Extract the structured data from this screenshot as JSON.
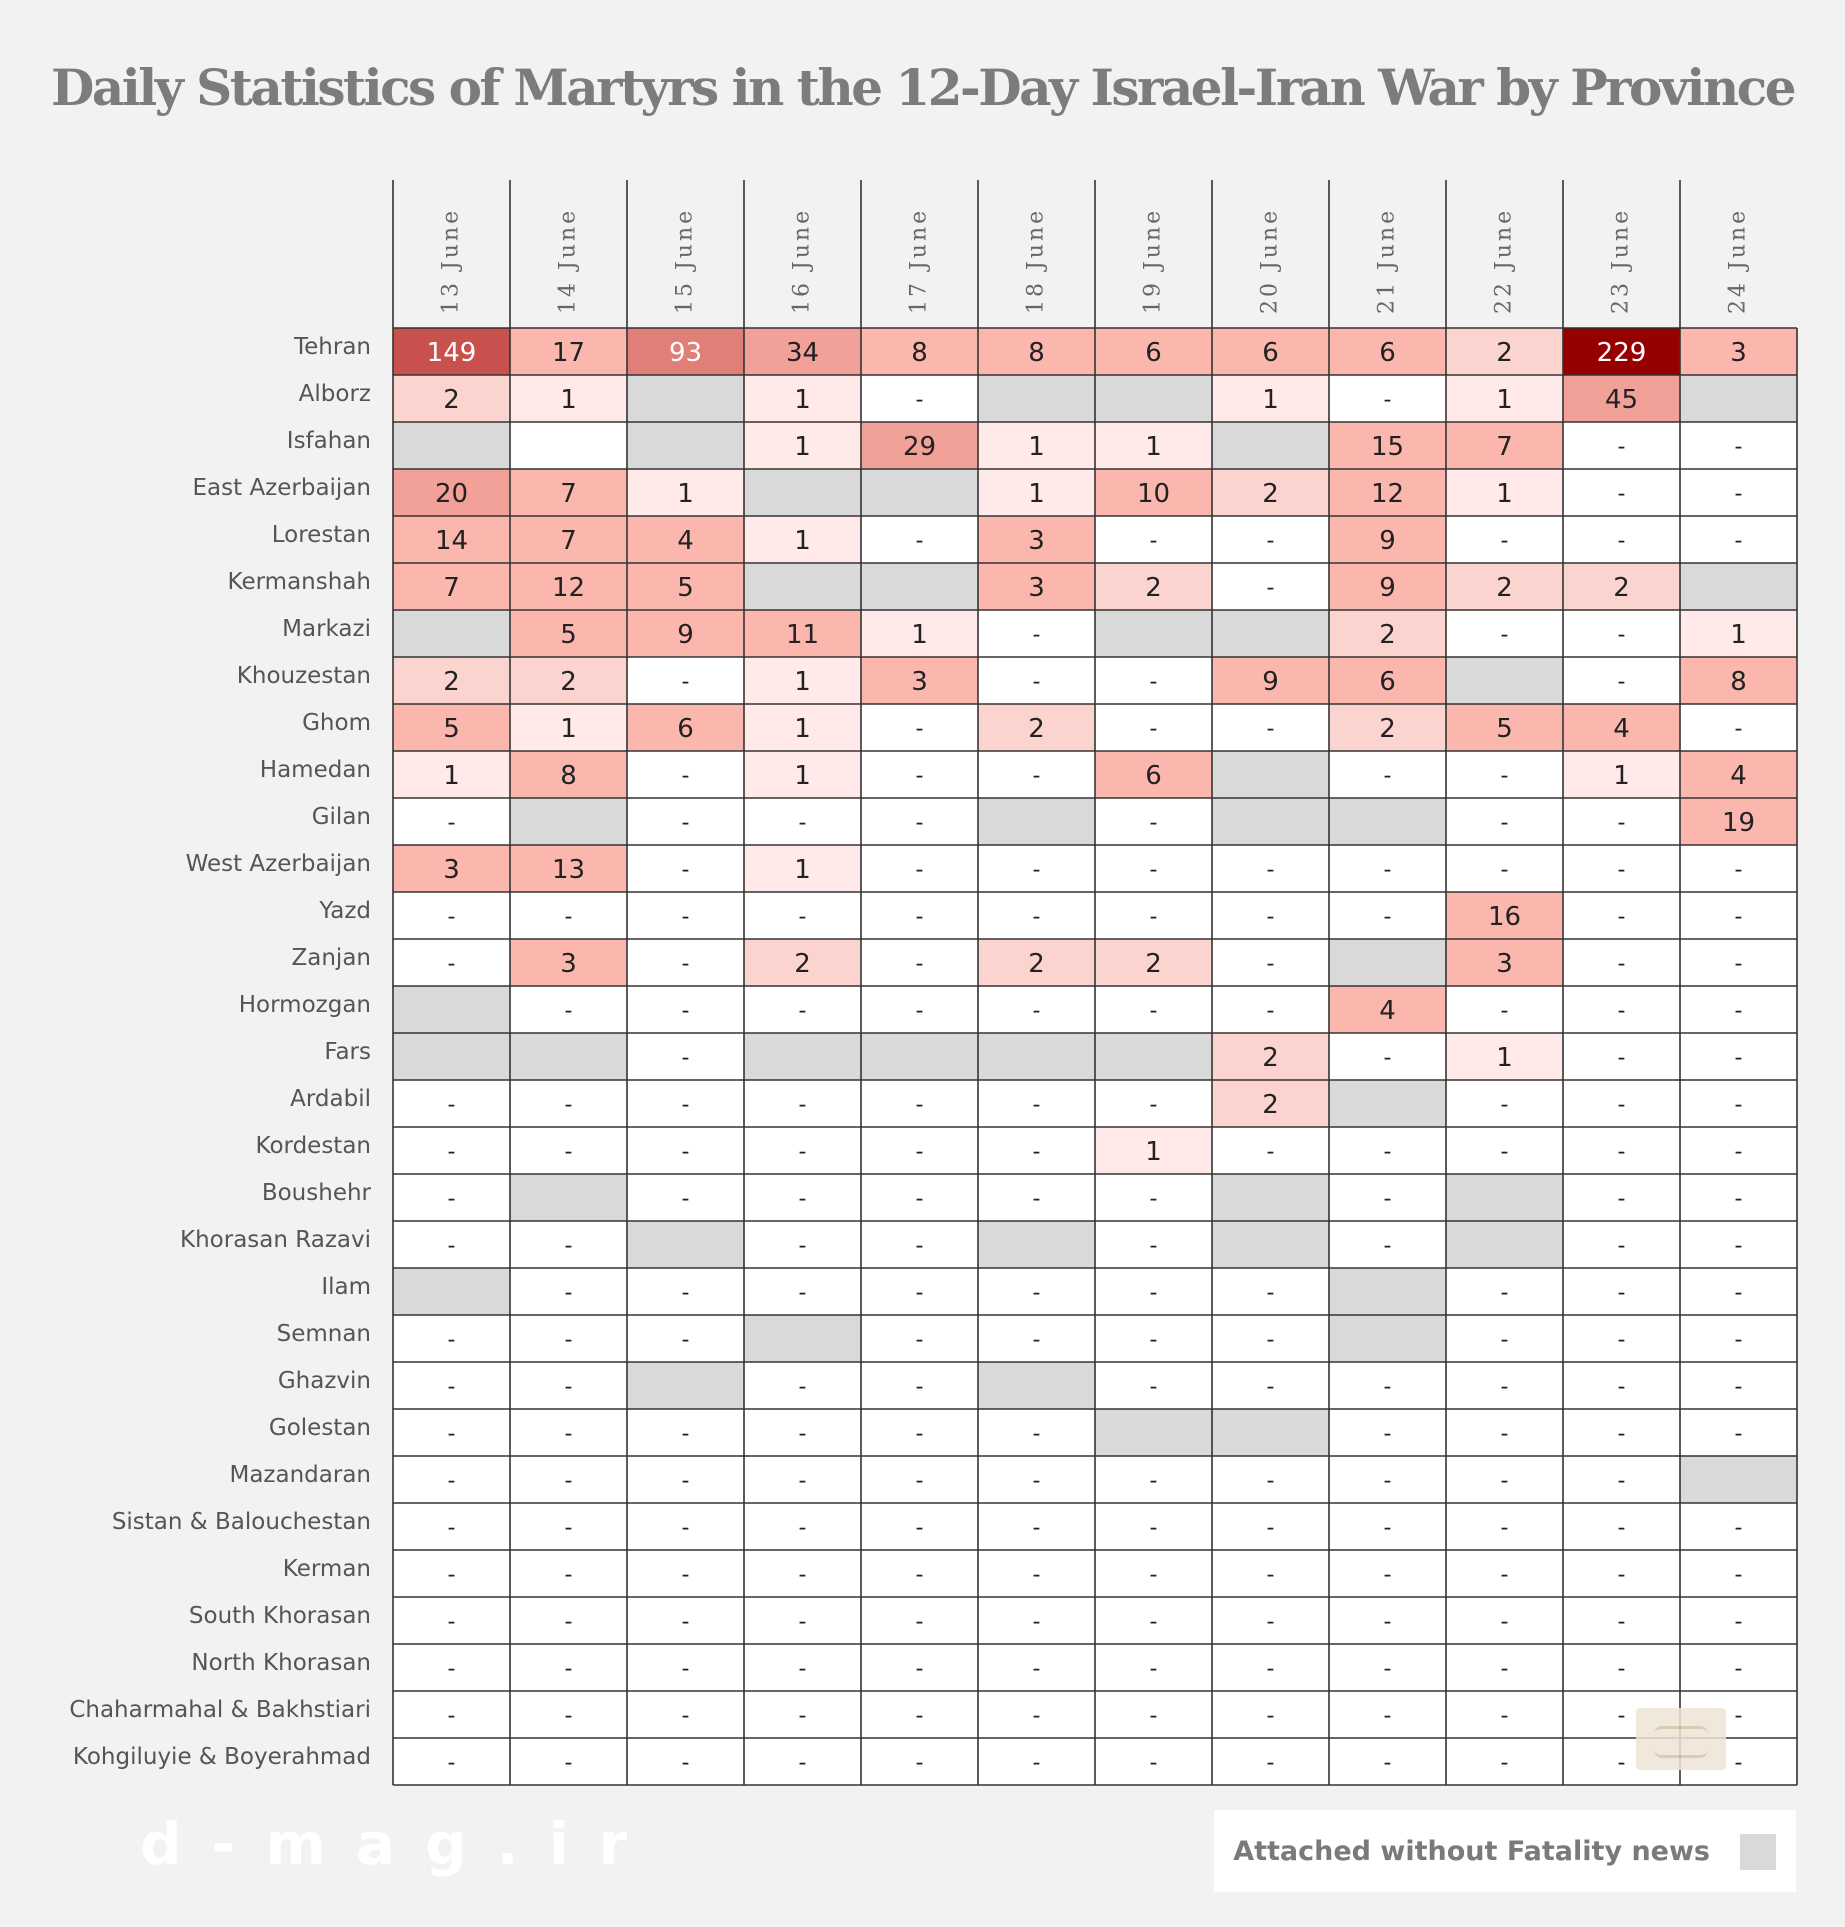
{
  "chart_data": {
    "type": "heatmap",
    "title": "Daily Statistics of  Martyrs in the 12-Day Israel-Iran War by Province",
    "columns": [
      "13 June",
      "14 June",
      "15 June",
      "16 June",
      "17 June",
      "18 June",
      "19 June",
      "20 June",
      "21 June",
      "22 June",
      "23 June",
      "24 June"
    ],
    "rows": [
      {
        "province": "Tehran",
        "values": [
          149,
          17,
          93,
          34,
          8,
          8,
          6,
          6,
          6,
          2,
          229,
          3
        ]
      },
      {
        "province": "Alborz",
        "values": [
          2,
          1,
          "#",
          "1",
          "-",
          "#",
          "#",
          1,
          "-",
          1,
          45,
          "#"
        ]
      },
      {
        "province": "Isfahan",
        "values": [
          "#",
          "",
          "#",
          1,
          29,
          1,
          1,
          "#",
          15,
          7,
          "-",
          "-"
        ]
      },
      {
        "province": "East Azerbaijan",
        "values": [
          20,
          7,
          1,
          "#",
          "#",
          1,
          10,
          2,
          12,
          1,
          "-",
          "-"
        ]
      },
      {
        "province": "Lorestan",
        "values": [
          14,
          7,
          4,
          1,
          "-",
          3,
          "-",
          "-",
          9,
          "-",
          "-",
          "-"
        ]
      },
      {
        "province": "Kermanshah",
        "values": [
          7,
          12,
          5,
          "#",
          "#",
          3,
          2,
          "-",
          9,
          2,
          2,
          "#"
        ]
      },
      {
        "province": "Markazi",
        "values": [
          "#",
          5,
          9,
          11,
          1,
          "-",
          "#",
          "#",
          2,
          "-",
          "-",
          1
        ]
      },
      {
        "province": "Khouzestan",
        "values": [
          2,
          2,
          "-",
          1,
          3,
          "-",
          "-",
          9,
          6,
          "#",
          "-",
          8
        ]
      },
      {
        "province": "Ghom",
        "values": [
          5,
          1,
          6,
          1,
          "-",
          2,
          "-",
          "-",
          2,
          5,
          4,
          "-"
        ]
      },
      {
        "province": "Hamedan",
        "values": [
          1,
          8,
          "-",
          1,
          "-",
          "-",
          6,
          "#",
          "-",
          "-",
          1,
          4
        ]
      },
      {
        "province": "Gilan",
        "values": [
          "-",
          "#",
          "-",
          "-",
          "-",
          "#",
          "-",
          "#",
          "#",
          "-",
          "-",
          19
        ]
      },
      {
        "province": "West Azerbaijan",
        "values": [
          3,
          13,
          "-",
          1,
          "-",
          "-",
          "-",
          "-",
          "-",
          "-",
          "-",
          "-"
        ]
      },
      {
        "province": "Yazd",
        "values": [
          "-",
          "-",
          "-",
          "-",
          "-",
          "-",
          "-",
          "-",
          "-",
          16,
          "-",
          "-"
        ]
      },
      {
        "province": "Zanjan",
        "values": [
          "-",
          3,
          "-",
          2,
          "-",
          2,
          2,
          "-",
          "#",
          3,
          "-",
          "-"
        ]
      },
      {
        "province": "Hormozgan",
        "values": [
          "#",
          "-",
          "-",
          "-",
          "-",
          "-",
          "-",
          "-",
          4,
          "-",
          "-",
          "-"
        ]
      },
      {
        "province": "Fars",
        "values": [
          "#",
          "#",
          "-",
          "#",
          "#",
          "#",
          "#",
          2,
          "-",
          1,
          "-",
          "-"
        ]
      },
      {
        "province": "Ardabil",
        "values": [
          "-",
          "-",
          "-",
          "-",
          "-",
          "-",
          "-",
          2,
          "#",
          "-",
          "-",
          "-"
        ]
      },
      {
        "province": "Kordestan",
        "values": [
          "-",
          "-",
          "-",
          "-",
          "-",
          "-",
          1,
          "-",
          "-",
          "-",
          "-",
          "-"
        ]
      },
      {
        "province": "Boushehr",
        "values": [
          "-",
          "#",
          "-",
          "-",
          "-",
          "-",
          "-",
          "#",
          "-",
          "#",
          "-",
          "-"
        ]
      },
      {
        "province": "Khorasan Razavi",
        "values": [
          "-",
          "-",
          "#",
          "-",
          "-",
          "#",
          "-",
          "#",
          "-",
          "#",
          "-",
          "-"
        ]
      },
      {
        "province": "Ilam",
        "values": [
          "#",
          "-",
          "-",
          "-",
          "-",
          "-",
          "-",
          "-",
          "#",
          "-",
          "-",
          "-"
        ]
      },
      {
        "province": "Semnan",
        "values": [
          "-",
          "-",
          "-",
          "#",
          "-",
          "-",
          "-",
          "-",
          "#",
          "-",
          "-",
          "-"
        ]
      },
      {
        "province": "Ghazvin",
        "values": [
          "-",
          "-",
          "#",
          "-",
          "-",
          "#",
          "-",
          "-",
          "-",
          "-",
          "-",
          "-"
        ]
      },
      {
        "province": "Golestan",
        "values": [
          "-",
          "-",
          "-",
          "-",
          "-",
          "-",
          "#",
          "#",
          "-",
          "-",
          "-",
          "-"
        ]
      },
      {
        "province": "Mazandaran",
        "values": [
          "-",
          "-",
          "-",
          "-",
          "-",
          "-",
          "-",
          "-",
          "-",
          "-",
          "-",
          "#"
        ]
      },
      {
        "province": "Sistan & Balouchestan",
        "values": [
          "-",
          "-",
          "-",
          "-",
          "-",
          "-",
          "-",
          "-",
          "-",
          "-",
          "-",
          "-"
        ]
      },
      {
        "province": "Kerman",
        "values": [
          "-",
          "-",
          "-",
          "-",
          "-",
          "-",
          "-",
          "-",
          "-",
          "-",
          "-",
          "-"
        ]
      },
      {
        "province": "South Khorasan",
        "values": [
          "-",
          "-",
          "-",
          "-",
          "-",
          "-",
          "-",
          "-",
          "-",
          "-",
          "-",
          "-"
        ]
      },
      {
        "province": "North Khorasan",
        "values": [
          "-",
          "-",
          "-",
          "-",
          "-",
          "-",
          "-",
          "-",
          "-",
          "-",
          "-",
          "-"
        ]
      },
      {
        "province": "Chaharmahal & Bakhstiari",
        "values": [
          "-",
          "-",
          "-",
          "-",
          "-",
          "-",
          "-",
          "-",
          "-",
          "-",
          "-",
          "-"
        ]
      },
      {
        "province": "Kohgiluyie & Boyerahmad",
        "values": [
          "-",
          "-",
          "-",
          "-",
          "-",
          "-",
          "-",
          "-",
          "-",
          "-",
          "-",
          "-"
        ]
      }
    ],
    "value_legend": "Attached without Fatality news",
    "color_scale": [
      "#ffffff",
      "#ffe9e9",
      "#fcd4cf",
      "#fbb7ae",
      "#f1a198",
      "#df7f77",
      "#c8504d",
      "#960000"
    ],
    "attached_color": "#d9d9d9",
    "empty_color": "#ffffff"
  },
  "watermark": "d-mag.ir"
}
